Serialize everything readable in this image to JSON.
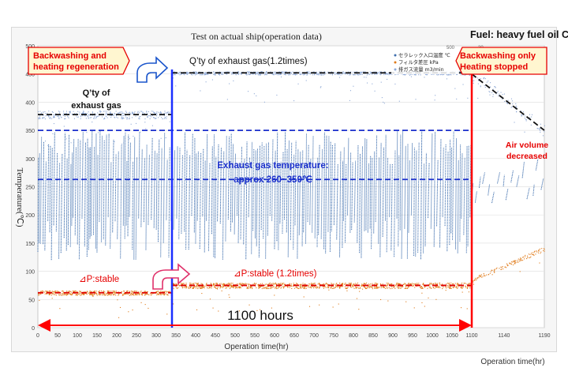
{
  "chart_data": {
    "type": "scatter",
    "title": "Test on actual ship(operation data)",
    "fuel_label": "Fuel: heavy fuel oil C",
    "ylabel": "Temperature(℃)",
    "xlabel": "Operation time(hr)",
    "xlabel_right": "Operation time(hr)",
    "ylim": [
      0,
      500
    ],
    "yticks": [
      0,
      50,
      100,
      150,
      200,
      250,
      300,
      350,
      400,
      450,
      500
    ],
    "xlim": [
      0,
      1190
    ],
    "xticks_main": [
      0,
      50,
      100,
      150,
      200,
      250,
      300,
      350,
      400,
      450,
      500,
      550,
      600,
      650,
      700,
      750,
      800,
      850,
      900,
      950,
      1000,
      1050,
      1100
    ],
    "xticks_right": [
      1140,
      1190
    ],
    "legend": [
      "セラレック入口温度 ℃",
      "フィルタ差圧 kPa",
      "排ガス流量 m3/min"
    ],
    "series": [
      {
        "name": "排ガス流量 m3/min",
        "color": "#8fa9d6",
        "segments": [
          {
            "x_start": 0,
            "x_end": 340,
            "level": 378,
            "spread": 14
          },
          {
            "x_start": 340,
            "x_end": 1100,
            "level": 452,
            "spread": 6
          },
          {
            "x_start": 1100,
            "x_end": 1190,
            "level_start": 450,
            "level_end": 350,
            "spread": 22
          }
        ]
      },
      {
        "name": "セラレック入口温度 ℃",
        "color": "#3f6fae",
        "segments": [
          {
            "x_start": 0,
            "x_end": 1100,
            "low": 120,
            "high": 350
          },
          {
            "x_start": 1100,
            "x_end": 1190,
            "low": 255,
            "high": 300
          }
        ]
      },
      {
        "name": "フィルタ差圧 kPa",
        "color": "#e07b1a",
        "segments": [
          {
            "x_start": 0,
            "x_end": 340,
            "level": 62,
            "spread": 8
          },
          {
            "x_start": 340,
            "x_end": 1100,
            "level": 75,
            "spread": 10
          },
          {
            "x_start": 1100,
            "x_end": 1190,
            "level_start": 85,
            "level_end": 140,
            "spread": 8
          }
        ]
      }
    ],
    "reference_lines": [
      {
        "name": "exhaust-qty-before",
        "y": 378,
        "x_start": 0,
        "x_end": 340,
        "color": "#111111"
      },
      {
        "name": "exhaust-qty-after",
        "y": 452,
        "x_start": 340,
        "x_end": 1100,
        "color": "#111111"
      },
      {
        "name": "exhaust-qty-decline",
        "y_start": 450,
        "y_end": 350,
        "x_start": 1100,
        "x_end": 1190,
        "color": "#111111"
      },
      {
        "name": "temp-band-upper",
        "y": 350,
        "x_start": 0,
        "x_end": 1100,
        "color": "#1a2fcc"
      },
      {
        "name": "temp-band-lower",
        "y": 263,
        "x_start": 0,
        "x_end": 1100,
        "color": "#1a2fcc"
      },
      {
        "name": "dp-before",
        "y": 62,
        "x_start": 0,
        "x_end": 340,
        "color": "#e00000"
      },
      {
        "name": "dp-after",
        "y": 75,
        "x_start": 340,
        "x_end": 1100,
        "color": "#e00000"
      }
    ],
    "event_lines": [
      {
        "name": "change-point",
        "x": 340,
        "color": "#1a2fff"
      },
      {
        "name": "mode-switch",
        "x": 1100,
        "color": "#ff0000"
      }
    ],
    "annotations": {
      "backwash_regen": [
        "Backwashing and",
        "heating regeneration"
      ],
      "backwash_only": [
        "Backwashing only",
        "Heating stopped"
      ],
      "qty_exhaust": [
        "Q’ty of",
        "exhaust gas"
      ],
      "qty_exhaust_12": "Q’ty of exhaust gas(1.2times)",
      "exhaust_temp": [
        "Exhaust gas temperature:",
        "approx 260~350℃"
      ],
      "air_volume": [
        "Air volume",
        "decreased"
      ],
      "dp_stable": "⊿P:stable",
      "dp_stable_12": "⊿P:stable (1.2times)",
      "duration": "1100 hours"
    },
    "axis_top_right_labels": [
      "500",
      "30"
    ]
  }
}
